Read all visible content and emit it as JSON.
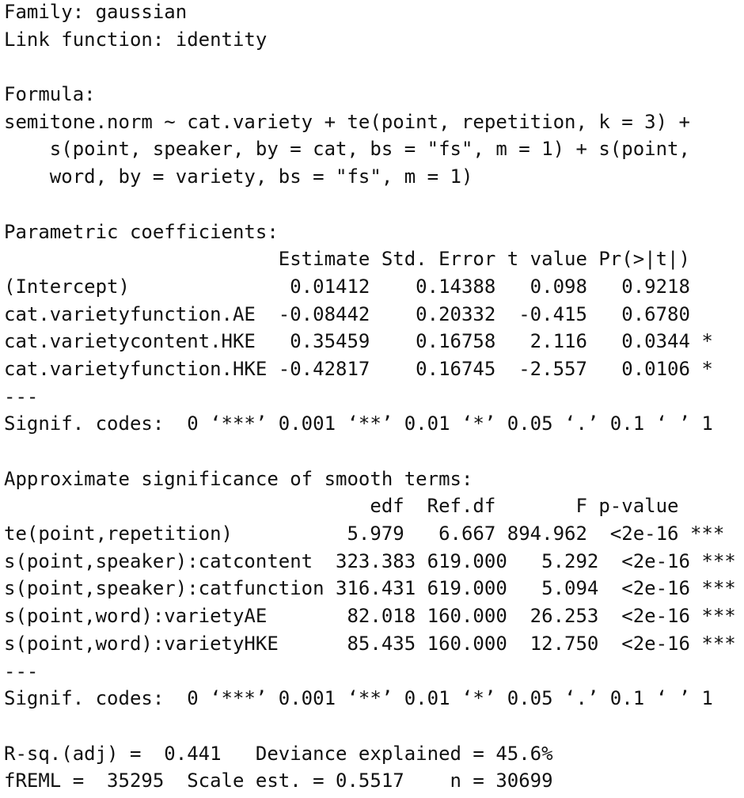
{
  "family_line": "Family: gaussian",
  "link_line": "Link function: identity",
  "formula": {
    "heading": "Formula:",
    "lines": [
      "semitone.norm ~ cat.variety + te(point, repetition, k = 3) +",
      "    s(point, speaker, by = cat, bs = \"fs\", m = 1) + s(point,",
      "    word, by = variety, bs = \"fs\", m = 1)"
    ]
  },
  "parametric": {
    "heading": "Parametric coefficients:",
    "header_line": "                        Estimate Std. Error t value Pr(>|t|)",
    "rows": [
      "(Intercept)              0.01412    0.14388   0.098   0.9218",
      "cat.varietyfunction.AE  -0.08442    0.20332  -0.415   0.6780",
      "cat.varietycontent.HKE   0.35459    0.16758   2.116   0.0344 *",
      "cat.varietyfunction.HKE -0.42817    0.16745  -2.557   0.0106 *"
    ],
    "separator": "---",
    "signif_codes": "Signif. codes:  0 ‘***’ 0.001 ‘**’ 0.01 ‘*’ 0.05 ‘.’ 0.1 ‘ ’ 1"
  },
  "smooth": {
    "heading": "Approximate significance of smooth terms:",
    "header_line": "                                edf  Ref.df       F p-value",
    "rows": [
      "te(point,repetition)          5.979   6.667 894.962  <2e-16 ***",
      "s(point,speaker):catcontent  323.383 619.000   5.292  <2e-16 ***",
      "s(point,speaker):catfunction 316.431 619.000   5.094  <2e-16 ***",
      "s(point,word):varietyAE       82.018 160.000  26.253  <2e-16 ***",
      "s(point,word):varietyHKE      85.435 160.000  12.750  <2e-16 ***"
    ],
    "separator": "---",
    "signif_codes": "Signif. codes:  0 ‘***’ 0.001 ‘**’ 0.01 ‘*’ 0.05 ‘.’ 0.1 ‘ ’ 1"
  },
  "fit": {
    "line1": "R-sq.(adj) =  0.441   Deviance explained = 45.6%",
    "line2": "fREML =  35295  Scale est. = 0.5517    n = 30699"
  }
}
